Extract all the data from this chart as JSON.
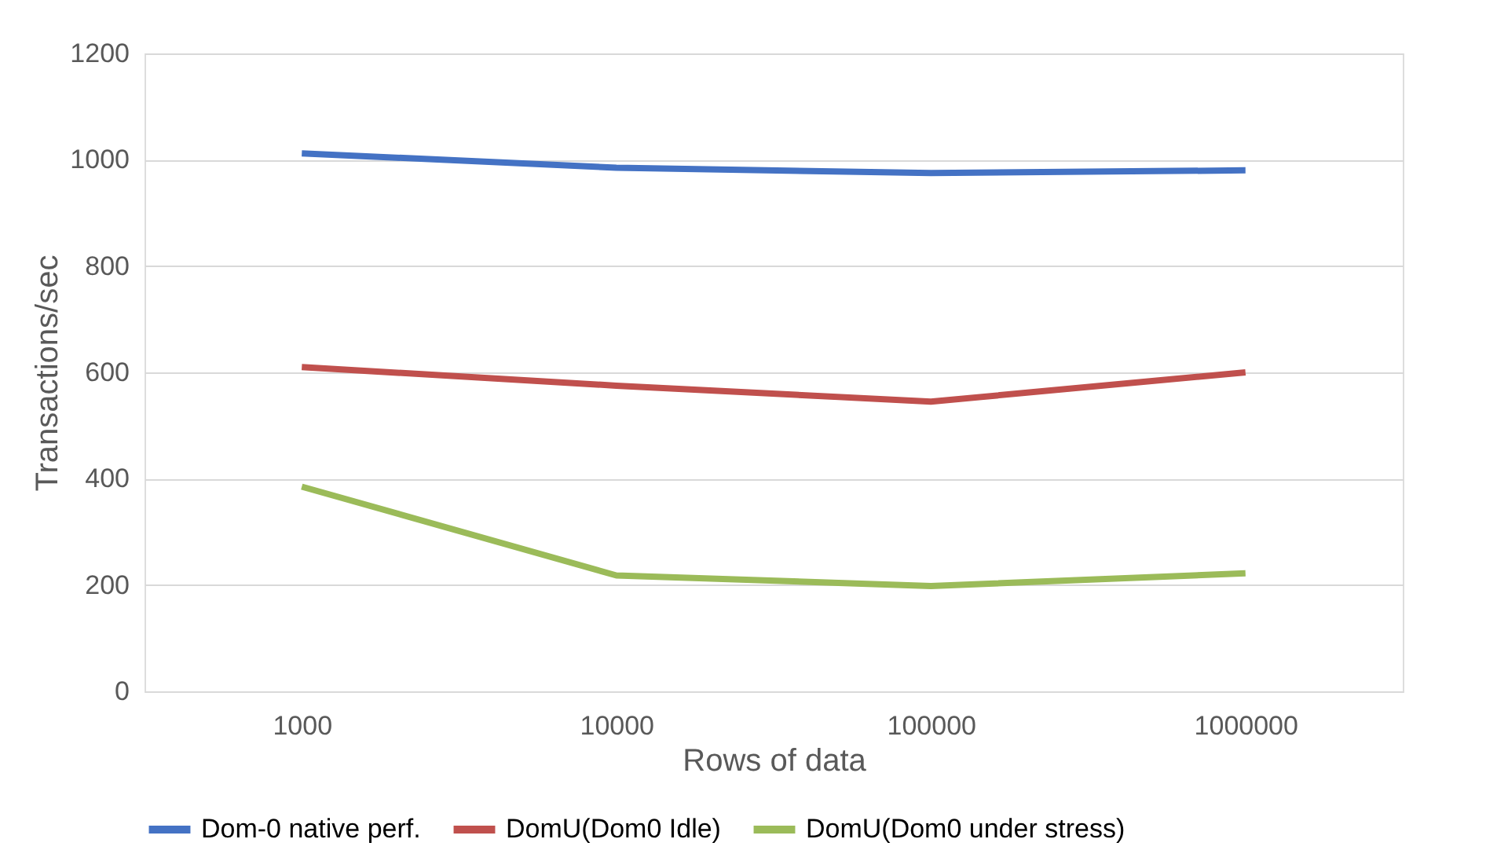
{
  "chart_data": {
    "type": "line",
    "xlabel": "Rows of data",
    "ylabel": "Transactions/sec",
    "categories": [
      "1000",
      "10000",
      "100000",
      "1000000"
    ],
    "series": [
      {
        "name": "Dom-0 native perf.",
        "color": "#4472c4",
        "values": [
          1012,
          985,
          975,
          980
        ]
      },
      {
        "name": "DomU(Dom0 Idle)",
        "color": "#c0504d",
        "values": [
          610,
          575,
          545,
          600
        ]
      },
      {
        "name": "DomU(Dom0 under stress)",
        "color": "#9bbb59",
        "values": [
          385,
          218,
          198,
          222
        ]
      }
    ],
    "ylim": [
      0,
      1200
    ],
    "yticks": [
      0,
      200,
      400,
      600,
      800,
      1000,
      1200
    ],
    "grid": "y",
    "legend": "bottom",
    "marker": "none",
    "line_style": "solid"
  }
}
